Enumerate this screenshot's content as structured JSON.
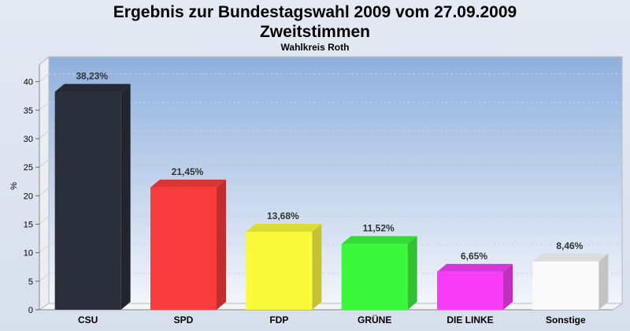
{
  "colors": {
    "page_background": "#dde4f0",
    "plot_background_top": "#8fb0dd",
    "plot_background_bottom": "#f2f5fa"
  },
  "chart_data": {
    "type": "bar",
    "title": "Ergebnis zur Bundestagswahl 2009 vom 27.09.2009",
    "title_line2": "Zweitstimmen",
    "subtitle": "Wahlkreis Roth",
    "ylabel": "%",
    "xlabel": "",
    "ylim": [
      0,
      43
    ],
    "yticks": [
      0,
      5,
      10,
      15,
      20,
      25,
      30,
      35,
      40
    ],
    "grid": true,
    "style": "3d",
    "categories": [
      "CSU",
      "SPD",
      "FDP",
      "GRÜNE",
      "DIE LINKE",
      "Sonstige"
    ],
    "values": [
      38.23,
      21.45,
      13.68,
      11.52,
      6.65,
      8.46
    ],
    "value_labels": [
      "38,23%",
      "21,45%",
      "13,68%",
      "11,52%",
      "6,65%",
      "8,46%"
    ],
    "colors": [
      "#2b2f3b",
      "#f83b3b",
      "#fafa3a",
      "#3cf83c",
      "#f83cf8",
      "#fafafa"
    ]
  }
}
